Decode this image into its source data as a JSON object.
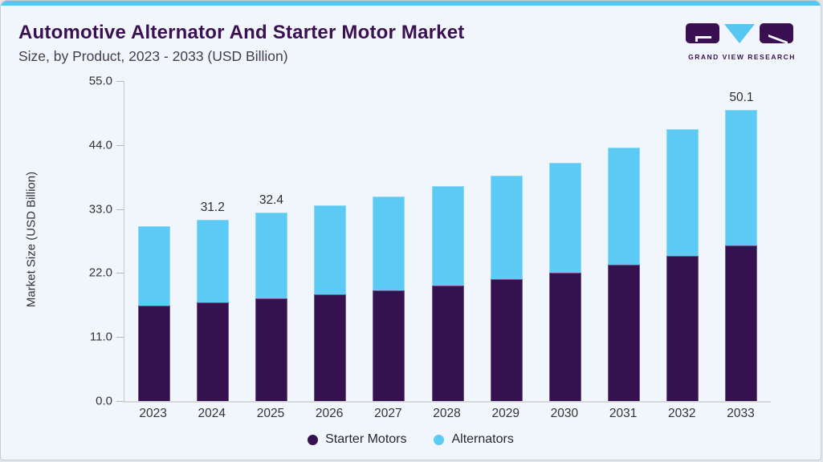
{
  "page": {
    "background": "#f0f6fb",
    "accent_color": "#56c7f2",
    "border_color": "#c8cdd3"
  },
  "header": {
    "title": "Automotive Alternator And Starter Motor Market",
    "subtitle": "Size, by Product, 2023 - 2033 (USD Billion)",
    "title_color": "#3a1053"
  },
  "logo": {
    "text": "GRAND VIEW RESEARCH",
    "dark_color": "#3a1053",
    "blue_color": "#56c7f2"
  },
  "chart_data": {
    "type": "bar",
    "stacked": true,
    "title": "Automotive Alternator And Starter Motor Market Size, by Product, 2023 - 2033 (USD Billion)",
    "categories": [
      "2023",
      "2024",
      "2025",
      "2026",
      "2027",
      "2028",
      "2029",
      "2030",
      "2031",
      "2032",
      "2033"
    ],
    "series": [
      {
        "name": "Starter Motors",
        "color": "#361150",
        "values": [
          16.4,
          17.0,
          17.6,
          18.4,
          19.0,
          19.9,
          20.9,
          22.0,
          23.4,
          24.9,
          26.7
        ]
      },
      {
        "name": "Alternators",
        "color": "#5ccaf5",
        "values": [
          13.7,
          14.2,
          14.8,
          15.3,
          16.2,
          17.0,
          17.9,
          19.0,
          20.2,
          21.8,
          23.4
        ]
      }
    ],
    "totals": [
      30.1,
      31.2,
      32.4,
      33.7,
      35.2,
      36.9,
      38.8,
      41.0,
      43.6,
      46.7,
      50.1
    ],
    "bar_total_labels": {
      "2024": "31.2",
      "2025": "32.4",
      "2033": "50.1"
    },
    "xlabel": "",
    "ylabel": "Market Size (USD Billion)",
    "ylim": [
      0,
      55
    ],
    "yticks": [
      "0.0",
      "11.0",
      "22.0",
      "33.0",
      "44.0",
      "55.0"
    ],
    "grid": false,
    "legend_position": "bottom"
  }
}
